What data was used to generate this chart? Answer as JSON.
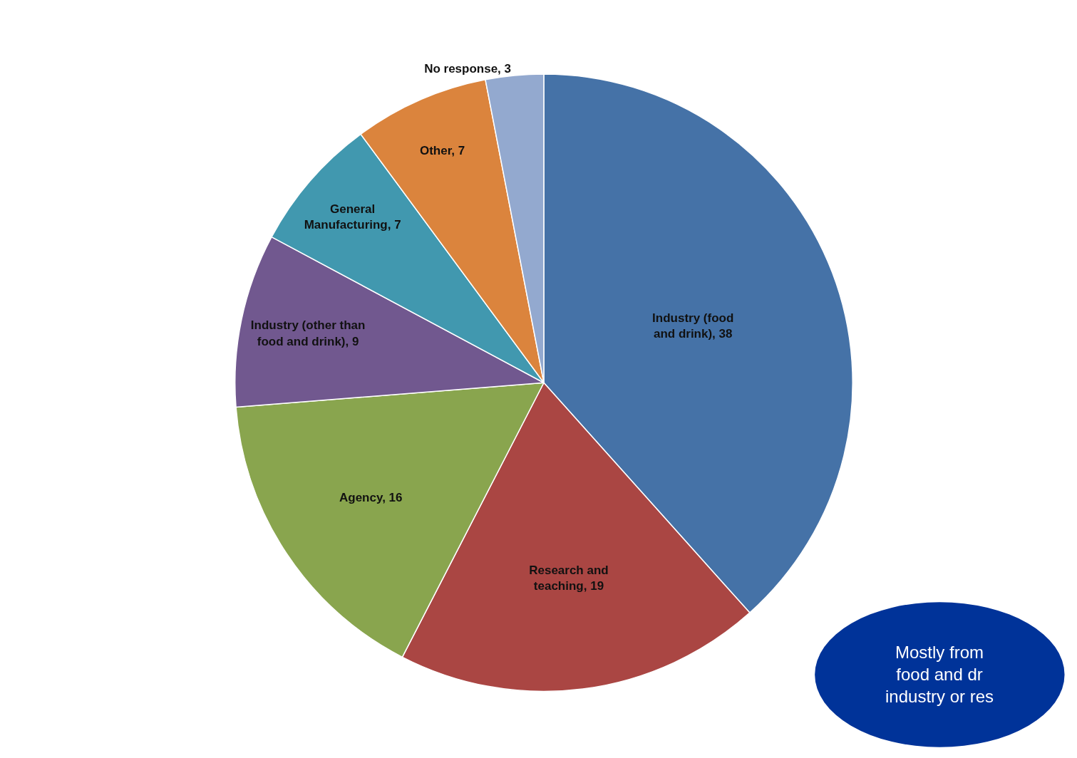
{
  "chart_data": {
    "type": "pie",
    "categories": [
      "Industry (food and drink)",
      "Research and teaching",
      "Agency",
      "Industry (other than food and drink)",
      "General Manufacturing",
      "Other",
      "No response"
    ],
    "values": [
      38,
      19,
      16,
      9,
      7,
      7,
      3
    ],
    "colors": [
      "#4572a7",
      "#aa4643",
      "#89a54e",
      "#71588f",
      "#4198af",
      "#db843d",
      "#93a9cf"
    ],
    "value_labels": [
      ", 38",
      ", 19",
      ", 16",
      ", 9",
      ", 7",
      ", 7",
      ", 3"
    ],
    "legend": false,
    "annotations": [
      "Mostly from\nfood and dr\nindustry or res"
    ]
  }
}
